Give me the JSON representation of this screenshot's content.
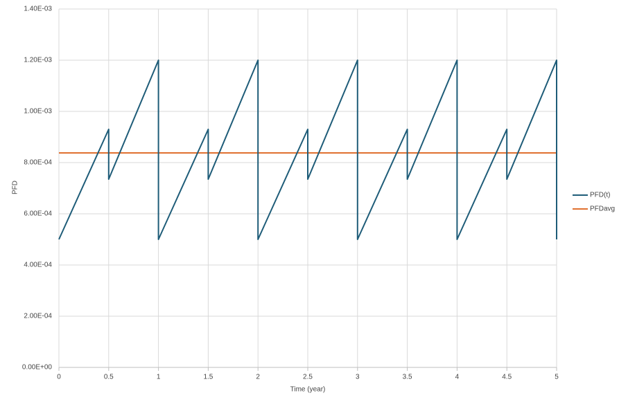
{
  "chart_data": {
    "type": "line",
    "x_label": "Time (year)",
    "y_label": "PFD",
    "xlim": [
      0,
      5
    ],
    "xticks": [
      0,
      0.5,
      1,
      1.5,
      2,
      2.5,
      3,
      3.5,
      4,
      4.5,
      5
    ],
    "ylim": [
      0,
      0.0014
    ],
    "yticks": [
      {
        "value": 0,
        "label": "0.00E+00"
      },
      {
        "value": 0.0002,
        "label": "2.00E-04"
      },
      {
        "value": 0.0004,
        "label": "4.00E-04"
      },
      {
        "value": 0.0006,
        "label": "6.00E-04"
      },
      {
        "value": 0.0008,
        "label": "8.00E-04"
      },
      {
        "value": 0.001,
        "label": "1.00E-03"
      },
      {
        "value": 0.0012,
        "label": "1.20E-03"
      },
      {
        "value": 0.0014,
        "label": "1.40E-03"
      }
    ],
    "grid": true,
    "legend": "right",
    "series": [
      {
        "name": "PFD(t)",
        "color": "#1e5c78",
        "x": [
          0,
          0.5,
          0.5,
          1,
          1,
          1.5,
          1.5,
          2,
          2,
          2.5,
          2.5,
          3,
          3,
          3.5,
          3.5,
          4,
          4,
          4.5,
          4.5,
          5,
          5
        ],
        "values": [
          0.0005,
          0.00093,
          0.000735,
          0.0012,
          0.0005,
          0.00093,
          0.000735,
          0.0012,
          0.0005,
          0.00093,
          0.000735,
          0.0012,
          0.0005,
          0.00093,
          0.000735,
          0.0012,
          0.0005,
          0.00093,
          0.000735,
          0.0012,
          0.0005
        ]
      },
      {
        "name": "PFDavg",
        "color": "#e0702f",
        "x": [
          0,
          5
        ],
        "values": [
          0.000838,
          0.000838
        ]
      }
    ]
  }
}
